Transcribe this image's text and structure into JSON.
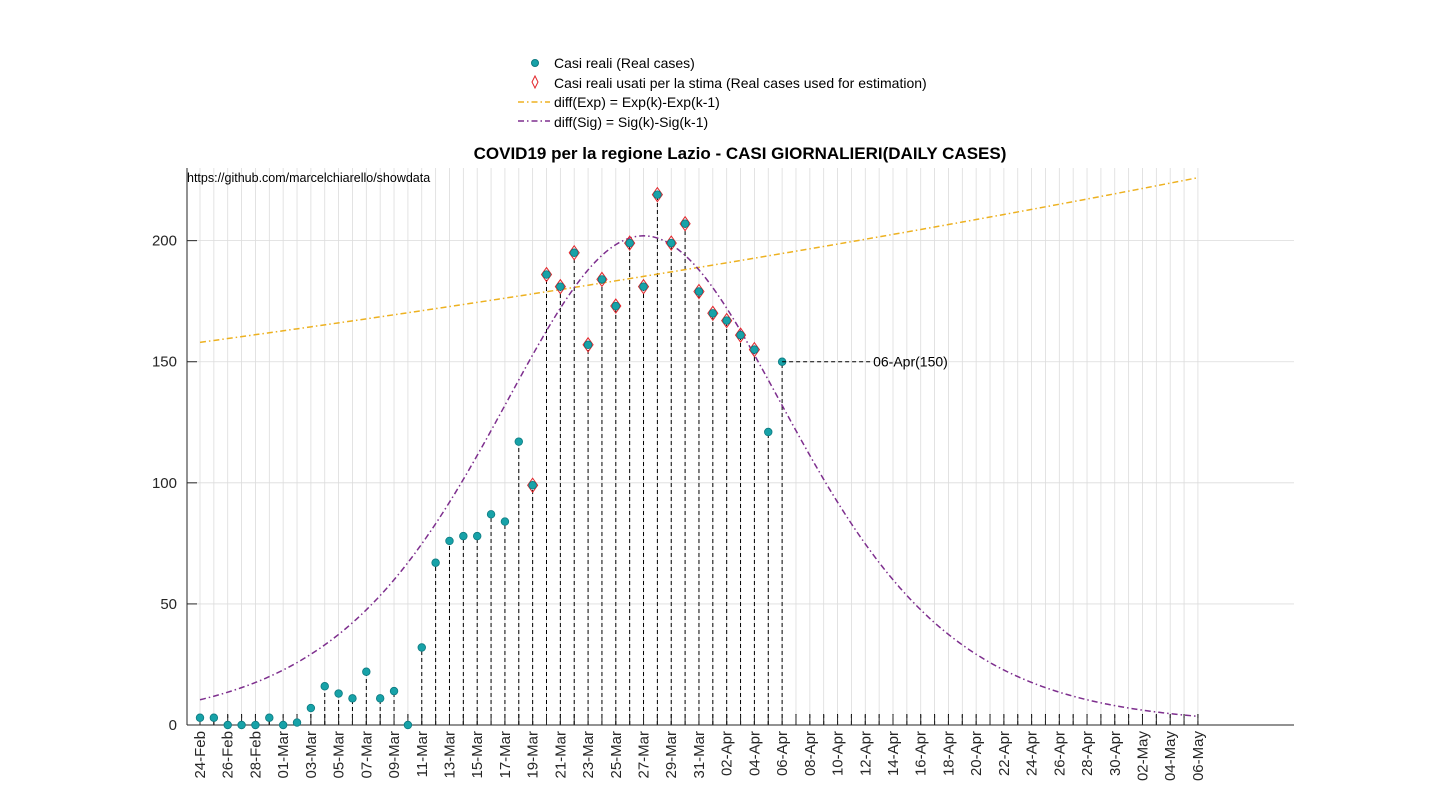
{
  "chart_data": {
    "type": "scatter",
    "title": "COVID19 per la regione Lazio - CASI GIORNALIERI(DAILY CASES)",
    "annotation": "https://github.com/marcelchiarello/showdata",
    "xlabel": "",
    "ylabel": "",
    "ylim": [
      0,
      230
    ],
    "yticks": [
      0,
      50,
      100,
      150,
      200
    ],
    "grid": true,
    "legend_position": "top",
    "x_tick_labels": [
      "24-Feb",
      "26-Feb",
      "28-Feb",
      "01-Mar",
      "03-Mar",
      "05-Mar",
      "07-Mar",
      "09-Mar",
      "11-Mar",
      "13-Mar",
      "15-Mar",
      "17-Mar",
      "19-Mar",
      "21-Mar",
      "23-Mar",
      "25-Mar",
      "27-Mar",
      "29-Mar",
      "31-Mar",
      "02-Apr",
      "04-Apr",
      "06-Apr",
      "08-Apr",
      "10-Apr",
      "12-Apr",
      "14-Apr",
      "16-Apr",
      "18-Apr",
      "20-Apr",
      "22-Apr",
      "24-Apr",
      "26-Apr",
      "28-Apr",
      "30-Apr",
      "02-May",
      "04-May",
      "06-May"
    ],
    "x_start": "24-Feb",
    "x_end": "06-May",
    "series": [
      {
        "name": "Casi reali (Real cases)",
        "kind": "points",
        "color": "#17a2a8",
        "x_from": "24-Feb",
        "values": [
          3,
          3,
          0,
          0,
          0,
          3,
          0,
          1,
          7,
          16,
          13,
          11,
          22,
          11,
          14,
          0,
          32,
          67,
          76,
          78,
          78,
          87,
          84,
          117,
          99,
          186,
          181,
          195,
          157,
          184,
          173,
          199,
          181,
          219,
          199,
          207,
          179,
          170,
          167,
          161,
          155,
          121,
          150
        ]
      },
      {
        "name": "Casi reali usati per la stima (Real cases used for estimation)",
        "kind": "diamonds",
        "color": "#e3262b",
        "x_from": "19-Mar",
        "values": [
          99,
          186,
          181,
          195,
          157,
          184,
          173,
          199,
          181,
          219,
          199,
          207,
          179,
          170,
          167,
          161,
          155
        ]
      },
      {
        "name": "diff(Exp) = Exp(k)-Exp(k-1)",
        "kind": "line",
        "color": "#edb120",
        "x_from": "24-Feb",
        "x_to": "06-May",
        "y_start": 158,
        "y_end": 226
      },
      {
        "name": "diff(Sig) = Sig(k)-Sig(k-1)",
        "kind": "line",
        "color": "#7e2f8e",
        "peak_x": "27-Mar",
        "peak_y": 202,
        "width_days": 7.4
      }
    ],
    "callout": {
      "x": "06-Apr",
      "value": 150,
      "label": "06-Apr(150)"
    }
  }
}
